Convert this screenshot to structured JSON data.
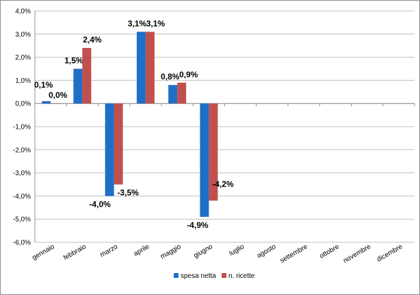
{
  "chart_data": {
    "type": "bar",
    "categories": [
      "gennaio",
      "febbraio",
      "marzo",
      "aprile",
      "maggio",
      "giugno",
      "luglio",
      "agosto",
      "settembre",
      "ottobre",
      "novembre",
      "dicembre"
    ],
    "series": [
      {
        "name": "spesa netta",
        "color": "#1f6fc6",
        "values": [
          0.1,
          1.5,
          -4.0,
          3.1,
          0.8,
          -4.9,
          null,
          null,
          null,
          null,
          null,
          null
        ],
        "labels": [
          "0,1%",
          "1,5%",
          "-4,0%",
          "3,1%",
          "0,8%",
          "-4,9%",
          "",
          "",
          "",
          "",
          "",
          ""
        ]
      },
      {
        "name": "n. ricette",
        "color": "#c0504d",
        "values": [
          0.0,
          2.4,
          -3.5,
          3.1,
          0.9,
          -4.2,
          null,
          null,
          null,
          null,
          null,
          null
        ],
        "labels": [
          "0,0%",
          "2,4%",
          "-3,5%",
          "3,1%",
          "0,9%",
          "-4,2%",
          "",
          "",
          "",
          "",
          "",
          ""
        ]
      }
    ],
    "ylim": [
      -6,
      4
    ],
    "yticks": [
      4,
      3,
      2,
      1,
      0,
      -1,
      -2,
      -3,
      -4,
      -5,
      -6
    ],
    "ytick_labels": [
      "4,0%",
      "3,0%",
      "2,0%",
      "1,0%",
      "0,0%",
      "-1,0%",
      "-2,0%",
      "-3,0%",
      "-4,0%",
      "-5,0%",
      "-6,0%"
    ],
    "grid": true,
    "legend_position": "bottom",
    "title": "",
    "xlabel": "",
    "ylabel": ""
  }
}
